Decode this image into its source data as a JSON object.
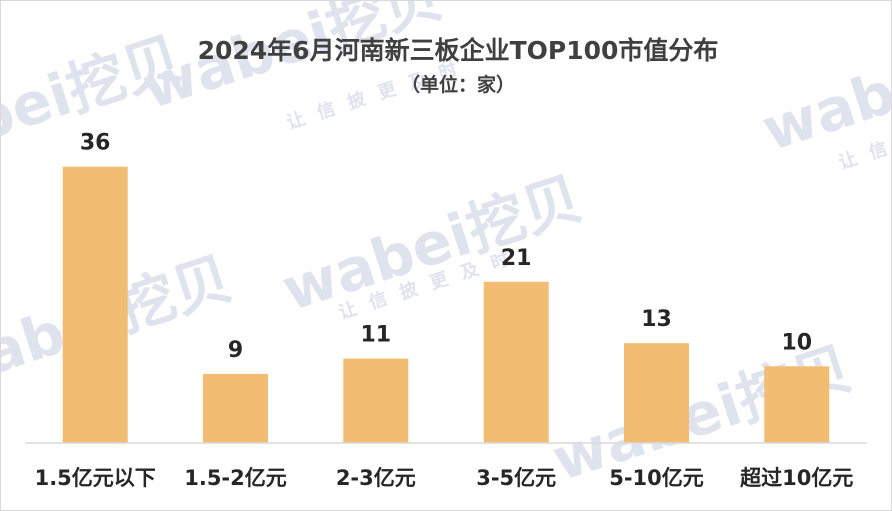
{
  "chart_data": {
    "type": "bar",
    "title": "2024年6月河南新三板企业TOP100市值分布",
    "subtitle": "（单位：家）",
    "categories": [
      "1.5亿元以下",
      "1.5-2亿元",
      "2-3亿元",
      "3-5亿元",
      "5-10亿元",
      "超过10亿元"
    ],
    "values": [
      36,
      9,
      11,
      21,
      13,
      10
    ],
    "ylim": [
      0,
      40
    ],
    "grid": false,
    "legend": "none",
    "xlabel": "",
    "ylabel": ""
  },
  "colors": {
    "bar": "#F2BC72",
    "axis": "#d9d9d9",
    "text": "#262626"
  },
  "watermark": {
    "brand": "wabei挖贝",
    "tagline": "让信披更及时"
  }
}
